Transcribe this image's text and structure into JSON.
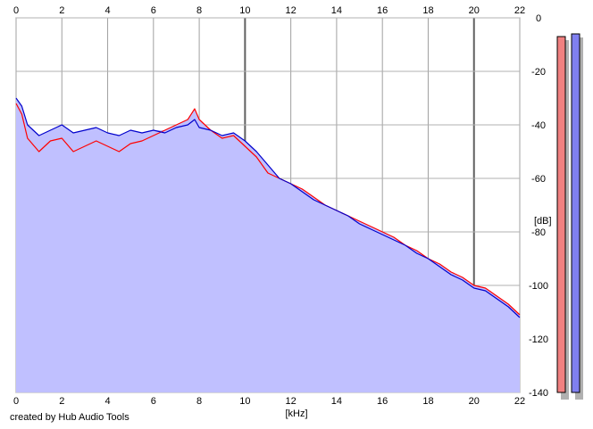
{
  "credit": "created by Hub Audio Tools",
  "chart_data": {
    "type": "line",
    "title": "",
    "xlabel": "[kHz]",
    "ylabel": "[dB]",
    "xlim": [
      0,
      22
    ],
    "ylim": [
      -140,
      0
    ],
    "x_ticks": [
      0,
      2,
      4,
      6,
      8,
      10,
      12,
      14,
      16,
      18,
      20,
      22
    ],
    "y_ticks": [
      0,
      -20,
      -40,
      -60,
      -80,
      -100,
      -120,
      -140
    ],
    "y_tick_labels": [
      "0",
      "-20",
      "-40",
      "-60",
      "-80",
      "-100",
      "-120",
      "-140"
    ],
    "grid": true,
    "fill_color": "#c0c0ff",
    "series": [
      {
        "color": "#ff0000",
        "x": [
          0,
          0.25,
          0.5,
          1,
          1.5,
          2,
          2.5,
          3,
          3.5,
          4,
          4.5,
          5,
          5.5,
          6,
          6.5,
          7,
          7.5,
          7.8,
          8,
          8.5,
          9,
          9.5,
          10,
          10.5,
          11,
          11.5,
          12,
          12.5,
          13,
          13.5,
          14,
          14.5,
          15,
          15.5,
          16,
          16.5,
          17,
          17.5,
          18,
          18.5,
          19,
          19.5,
          20,
          20.5,
          21,
          21.5,
          22
        ],
        "values": [
          -32,
          -36,
          -45,
          -50,
          -46,
          -45,
          -50,
          -48,
          -46,
          -48,
          -50,
          -47,
          -46,
          -44,
          -42,
          -40,
          -38,
          -34,
          -38,
          -42,
          -45,
          -44,
          -48,
          -52,
          -58,
          -60,
          -62,
          -64,
          -67,
          -70,
          -72,
          -74,
          -76,
          -78,
          -80,
          -82,
          -85,
          -87,
          -90,
          -92,
          -95,
          -97,
          -100,
          -101,
          -104,
          -107,
          -111
        ]
      },
      {
        "color": "#0000cc",
        "x": [
          0,
          0.25,
          0.5,
          1,
          1.5,
          2,
          2.5,
          3,
          3.5,
          4,
          4.5,
          5,
          5.5,
          6,
          6.5,
          7,
          7.5,
          7.8,
          8,
          8.5,
          9,
          9.5,
          10,
          10.5,
          11,
          11.5,
          12,
          12.5,
          13,
          13.5,
          14,
          14.5,
          15,
          15.5,
          16,
          16.5,
          17,
          17.5,
          18,
          18.5,
          19,
          19.5,
          20,
          20.5,
          21,
          21.5,
          22
        ],
        "values": [
          -30,
          -33,
          -40,
          -44,
          -42,
          -40,
          -43,
          -42,
          -41,
          -43,
          -44,
          -42,
          -43,
          -42,
          -43,
          -41,
          -40,
          -38,
          -41,
          -42,
          -44,
          -43,
          -46,
          -50,
          -55,
          -60,
          -62,
          -65,
          -68,
          -70,
          -72,
          -74,
          -77,
          -79,
          -81,
          -83,
          -85,
          -88,
          -90,
          -93,
          -96,
          -98,
          -101,
          -102,
          -105,
          -108,
          -112
        ]
      }
    ],
    "level_meters": [
      {
        "channel": "left",
        "color": "#f08080",
        "level_db": -7
      },
      {
        "channel": "right",
        "color": "#8080f0",
        "level_db": -6
      }
    ]
  }
}
